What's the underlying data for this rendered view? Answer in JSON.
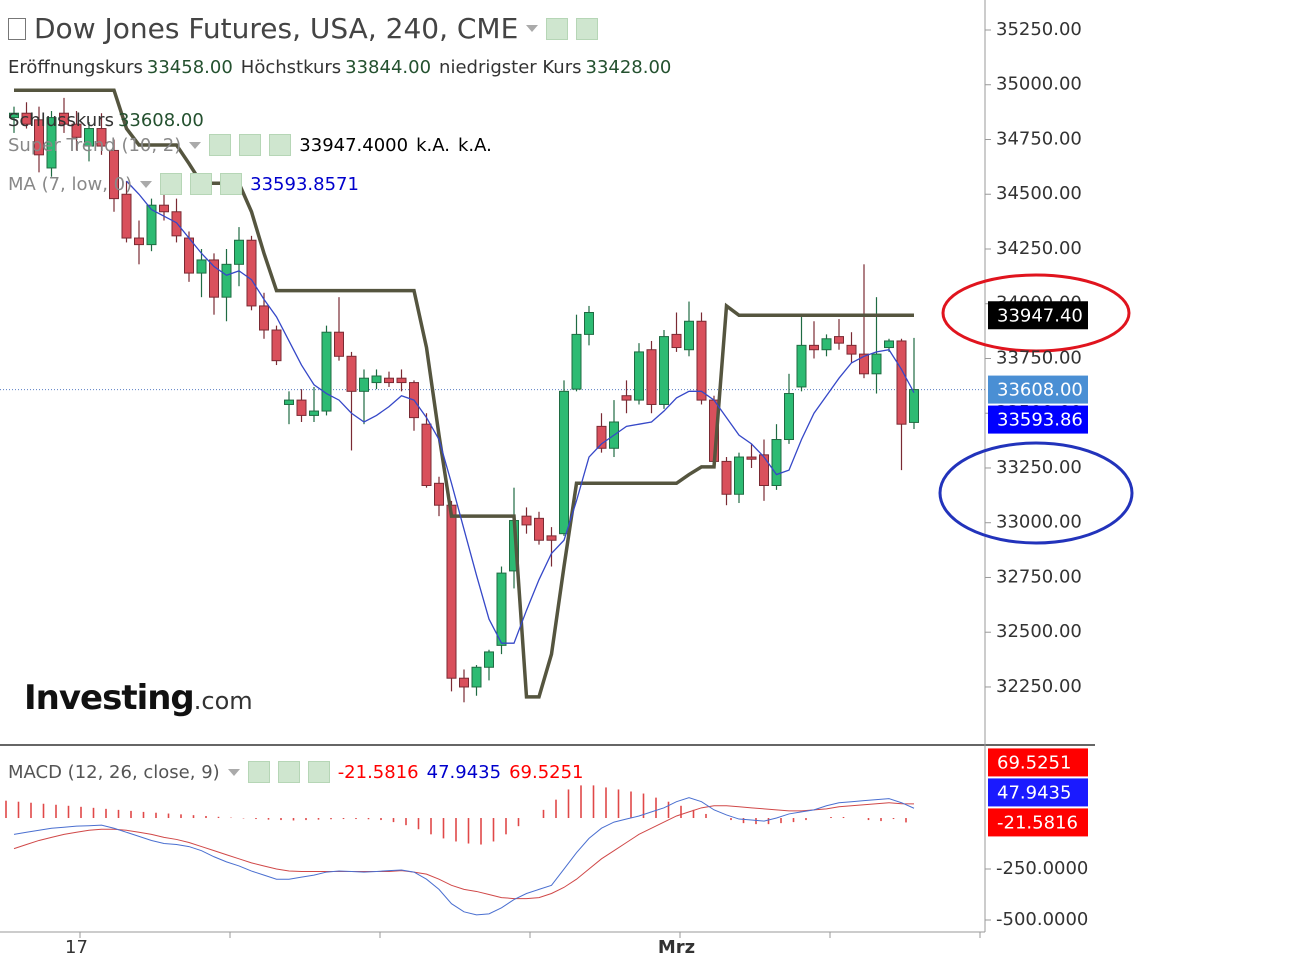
{
  "chart_data": [
    {
      "type": "candlestick",
      "title": "Dow Jones Futures, USA, 240, CME",
      "ohlc_legend": [
        {
          "label": "Eröffnungskurs",
          "value": "33458.00"
        },
        {
          "label": "Höchstkurs",
          "value": "33844.00"
        },
        {
          "label": "niedrigster Kurs",
          "value": "33428.00"
        },
        {
          "label": "Schlusskurs",
          "value": "33608.00"
        }
      ],
      "categories": [
        null,
        null,
        null,
        null,
        null,
        "17",
        null,
        null,
        null,
        null,
        null,
        null,
        null,
        null,
        null,
        null,
        null,
        null,
        null,
        null,
        null,
        null,
        null,
        null,
        null,
        null,
        null,
        null,
        null,
        null,
        null,
        null,
        null,
        null,
        null,
        null,
        null,
        null,
        null,
        null,
        null,
        null,
        null,
        null,
        null,
        null,
        null,
        null,
        null,
        null,
        null,
        null,
        null,
        "Mrz",
        null,
        null,
        null,
        null,
        null,
        null,
        null,
        null,
        null,
        null,
        null,
        null,
        null,
        null,
        null,
        null,
        null,
        null,
        null
      ],
      "open": [
        34850,
        34870,
        34840,
        34620,
        34870,
        34820,
        34720,
        34800,
        34700,
        34500,
        34300,
        34270,
        34450,
        34420,
        34300,
        34140,
        34200,
        34030,
        34180,
        34290,
        33990,
        33880,
        33540,
        33560,
        33490,
        33510,
        33870,
        33760,
        33600,
        33640,
        33660,
        33660,
        33640,
        33450,
        33180,
        33080,
        32290,
        32250,
        32340,
        32440,
        32780,
        33030,
        33020,
        32940,
        32950,
        33610,
        33860,
        33440,
        33340,
        33580,
        33560,
        33790,
        33540,
        33860,
        33790,
        33920,
        33560,
        33280,
        33130,
        33300,
        33310,
        33170,
        33380,
        33620,
        33810,
        33790,
        33850,
        33810,
        33770,
        33680,
        33800,
        33830,
        33458
      ],
      "high": [
        34900,
        34920,
        34900,
        34880,
        34940,
        34880,
        34830,
        34870,
        34750,
        34560,
        34380,
        34480,
        34510,
        34480,
        34330,
        34250,
        34230,
        34250,
        34350,
        34310,
        34050,
        33900,
        33600,
        33610,
        33620,
        33900,
        34030,
        33780,
        33700,
        33700,
        33690,
        33700,
        33650,
        33500,
        33210,
        33100,
        32330,
        32350,
        32420,
        32800,
        33160,
        33070,
        33050,
        32980,
        33650,
        33950,
        33990,
        33500,
        33560,
        33650,
        33820,
        33830,
        33880,
        33960,
        34010,
        33960,
        33580,
        33300,
        33320,
        33360,
        33380,
        33450,
        33680,
        33940,
        33920,
        33860,
        33930,
        33870,
        34180,
        34030,
        33840,
        33840,
        33844
      ],
      "low": [
        34780,
        34800,
        34600,
        34580,
        34780,
        34700,
        34650,
        34680,
        34420,
        34280,
        34180,
        34240,
        34380,
        34280,
        34100,
        34030,
        33950,
        33920,
        34080,
        33970,
        33840,
        33720,
        33450,
        33460,
        33460,
        33490,
        33740,
        33330,
        33450,
        33610,
        33620,
        33600,
        33420,
        33160,
        33030,
        32230,
        32180,
        32210,
        32280,
        32400,
        32700,
        32950,
        32900,
        32800,
        32940,
        33600,
        33810,
        33320,
        33300,
        33500,
        33540,
        33500,
        33520,
        33780,
        33760,
        33540,
        33260,
        33080,
        33090,
        33250,
        33100,
        33150,
        33360,
        33600,
        33750,
        33760,
        33790,
        33730,
        33660,
        33590,
        33780,
        33240,
        33428
      ],
      "close": [
        34870,
        34820,
        34680,
        34850,
        34820,
        34760,
        34800,
        34720,
        34480,
        34300,
        34270,
        34450,
        34420,
        34310,
        34140,
        34200,
        34030,
        34180,
        34290,
        33990,
        33880,
        33740,
        33560,
        33490,
        33510,
        33870,
        33760,
        33600,
        33660,
        33670,
        33640,
        33640,
        33480,
        33170,
        33080,
        32290,
        32250,
        32340,
        32410,
        32770,
        33010,
        32990,
        32920,
        32920,
        33600,
        33860,
        33960,
        33340,
        33460,
        33560,
        33780,
        33540,
        33850,
        33800,
        33920,
        33560,
        33280,
        33130,
        33300,
        33290,
        33170,
        33380,
        33590,
        33810,
        33790,
        33840,
        33820,
        33770,
        33680,
        33770,
        33830,
        33450,
        33608
      ],
      "up_color": "#2dbb73",
      "down_color": "#d9505c",
      "overlays": [
        {
          "name": "Super Trend (10, 2)",
          "color": "#55553f",
          "legend_color": "#000000",
          "legend_values": [
            "33947.4000",
            "k.A.",
            "k.A."
          ],
          "values": [
            34975,
            34975,
            34975,
            34975,
            34975,
            34975,
            34975,
            34975,
            34975,
            34800,
            34725,
            34725,
            34725,
            34725,
            34640,
            34550,
            34550,
            34550,
            34550,
            34420,
            34230,
            34060,
            34060,
            34060,
            34060,
            34060,
            34060,
            34060,
            34060,
            34060,
            34060,
            34060,
            34060,
            33800,
            33400,
            33030,
            33030,
            33030,
            33030,
            33030,
            33030,
            32205,
            32205,
            32400,
            32800,
            33180,
            33180,
            33180,
            33180,
            33180,
            33180,
            33180,
            33180,
            33180,
            33220,
            33255,
            33255,
            33990,
            33947.4,
            33947.4,
            33947.4,
            33947.4,
            33947.4,
            33947.4,
            33947.4,
            33947.4,
            33947.4,
            33947.4,
            33947.4,
            33947.4,
            33947.4,
            33947.4,
            33947.4
          ]
        },
        {
          "name": "MA (7, low, 0)",
          "color": "#3648c8",
          "legend_color": "#0000cc",
          "legend_values": [
            "33593.8571"
          ],
          "values": [
            null,
            null,
            null,
            null,
            null,
            null,
            null,
            null,
            null,
            34560,
            34500,
            34430,
            34400,
            34370,
            34300,
            34230,
            34170,
            34130,
            34150,
            34110,
            34020,
            33940,
            33830,
            33720,
            33630,
            33590,
            33560,
            33500,
            33460,
            33490,
            33530,
            33580,
            33560,
            33480,
            33380,
            33180,
            32970,
            32760,
            32560,
            32450,
            32450,
            32600,
            32740,
            32860,
            32920,
            33100,
            33300,
            33360,
            33400,
            33440,
            33450,
            33460,
            33510,
            33570,
            33600,
            33600,
            33560,
            33480,
            33400,
            33360,
            33300,
            33220,
            33240,
            33380,
            33500,
            33580,
            33660,
            33730,
            33760,
            33780,
            33790,
            33700,
            33593.86
          ]
        }
      ],
      "price_tags": [
        {
          "value": 33947.4,
          "label": "33947.40",
          "color": "#000000"
        },
        {
          "value": 33608,
          "label": "33608.00",
          "color": "#4a8fd4"
        },
        {
          "value": 33593.86,
          "label": "33593.86",
          "color": "#0000ff"
        }
      ],
      "ylim": [
        31985,
        35387
      ],
      "yticks": [
        {
          "value": 32250,
          "label": "32250.00"
        },
        {
          "value": 32500,
          "label": "32500.00"
        },
        {
          "value": 32750,
          "label": "32750.00"
        },
        {
          "value": 33000,
          "label": "33000.00"
        },
        {
          "value": 33250,
          "label": "33250.00"
        },
        {
          "value": 33500,
          "label": "33500.00"
        },
        {
          "value": 33750,
          "label": "33750.00"
        },
        {
          "value": 34000,
          "label": "34000.00"
        },
        {
          "value": 34250,
          "label": "34250.00"
        },
        {
          "value": 34500,
          "label": "34500.00"
        },
        {
          "value": 34750,
          "label": "34750.00"
        },
        {
          "value": 35000,
          "label": "35000.00"
        },
        {
          "value": 35250,
          "label": "35250.00"
        }
      ]
    },
    {
      "type": "macd",
      "name": "MACD (12, 26, close, 9)",
      "legend_values": [
        {
          "text": "-21.5816",
          "color": "#ff0000"
        },
        {
          "text": "47.9435",
          "color": "#0000cc"
        },
        {
          "text": "69.5251",
          "color": "#ff0000"
        }
      ],
      "histogram": {
        "color": "#e04848",
        "values": [
          85,
          80,
          75,
          70,
          65,
          60,
          55,
          50,
          45,
          40,
          35,
          30,
          26,
          22,
          18,
          14,
          10,
          6,
          2,
          -2,
          -5,
          -8,
          -10,
          -12,
          -10,
          -8,
          -6,
          -5,
          -5,
          -6,
          -10,
          -20,
          -35,
          -55,
          -80,
          -100,
          -115,
          -125,
          -130,
          -115,
          -80,
          -40,
          0,
          40,
          90,
          140,
          160,
          160,
          150,
          140,
          130,
          120,
          100,
          80,
          60,
          40,
          20,
          0,
          -10,
          -25,
          -30,
          -30,
          -25,
          -20,
          -10,
          0,
          5,
          5,
          0,
          -10,
          -15,
          -5,
          -21.5816
        ]
      },
      "macd": {
        "color": "#4a6fd0",
        "values": [
          -80,
          -70,
          -60,
          -50,
          -45,
          -40,
          -38,
          -35,
          -50,
          -70,
          -90,
          -110,
          -125,
          -130,
          -140,
          -160,
          -190,
          -215,
          -235,
          -260,
          -280,
          -300,
          -300,
          -290,
          -280,
          -265,
          -260,
          -262,
          -265,
          -262,
          -258,
          -255,
          -265,
          -300,
          -350,
          -420,
          -460,
          -475,
          -470,
          -440,
          -400,
          -370,
          -350,
          -330,
          -250,
          -170,
          -100,
          -50,
          -20,
          -5,
          10,
          30,
          50,
          80,
          100,
          80,
          40,
          15,
          -5,
          -10,
          -15,
          0,
          20,
          30,
          40,
          60,
          75,
          80,
          85,
          90,
          95,
          75,
          47.9435
        ]
      },
      "signal": {
        "color": "#d04848",
        "values": [
          -150,
          -130,
          -110,
          -95,
          -80,
          -70,
          -60,
          -55,
          -55,
          -60,
          -70,
          -80,
          -95,
          -105,
          -120,
          -140,
          -160,
          -180,
          -200,
          -220,
          -235,
          -250,
          -260,
          -262,
          -262,
          -262,
          -262,
          -262,
          -262,
          -262,
          -262,
          -258,
          -265,
          -275,
          -300,
          -330,
          -350,
          -360,
          -375,
          -390,
          -395,
          -395,
          -390,
          -370,
          -340,
          -300,
          -250,
          -200,
          -160,
          -120,
          -80,
          -50,
          -20,
          10,
          30,
          50,
          60,
          60,
          55,
          50,
          45,
          40,
          35,
          35,
          40,
          45,
          55,
          60,
          65,
          70,
          75,
          70,
          69.5251
        ]
      },
      "price_tags": [
        {
          "value": 69.5251,
          "label": "69.5251",
          "color": "#ff0000"
        },
        {
          "value": 47.9435,
          "label": "47.9435",
          "color": "#1a1aff"
        },
        {
          "value": -21.5816,
          "label": "-21.5816",
          "color": "#ff0000"
        }
      ],
      "ylim": [
        -549,
        358
      ],
      "yticks": [
        {
          "value": -250,
          "label": "-250.0000"
        },
        {
          "value": -500,
          "label": "-500.0000"
        }
      ]
    }
  ],
  "logo": {
    "name": "Investing",
    "suffix": ".com"
  }
}
